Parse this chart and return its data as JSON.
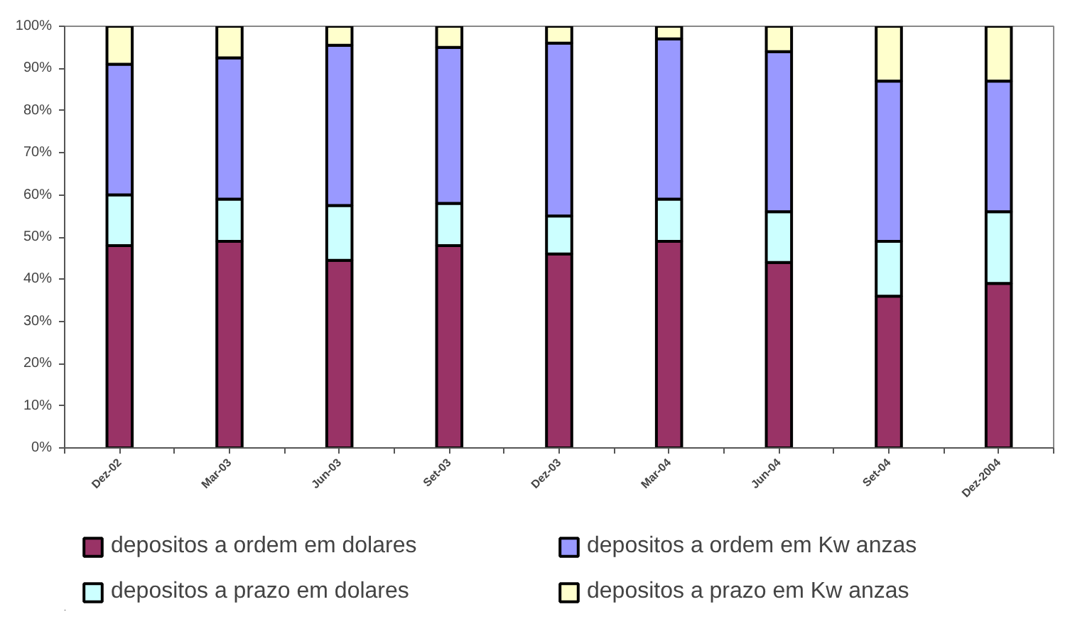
{
  "chart_data": {
    "type": "bar",
    "stacked": true,
    "categories": [
      "Dez-02",
      "Mar-03",
      "Jun-03",
      "Set-03",
      "Dez-03",
      "Mar-04",
      "Jun-04",
      "Set-04",
      "Dez-2004"
    ],
    "series": [
      {
        "name": "depositos a ordem em dolares",
        "color": "#993366",
        "values": [
          48,
          49,
          44.5,
          48,
          46,
          49,
          44,
          36,
          39
        ]
      },
      {
        "name": "depositos a prazo em dolares",
        "color": "#ccffff",
        "values": [
          12,
          10,
          13,
          10,
          9,
          10,
          12,
          13,
          17
        ]
      },
      {
        "name": "depositos a ordem em Kw anzas",
        "color": "#9999ff",
        "values": [
          31,
          33.5,
          38,
          37,
          41,
          38,
          38,
          38,
          31
        ]
      },
      {
        "name": "depositos a prazo em Kw anzas",
        "color": "#ffffcc",
        "values": [
          9,
          7.5,
          4.5,
          5,
          4,
          3,
          6,
          13,
          13
        ]
      }
    ],
    "ylim": [
      0,
      100
    ],
    "yticks": [
      {
        "value": 0,
        "label": "0%"
      },
      {
        "value": 10,
        "label": "10%"
      },
      {
        "value": 20,
        "label": "20%"
      },
      {
        "value": 30,
        "label": "30%"
      },
      {
        "value": 40,
        "label": "40%"
      },
      {
        "value": 50,
        "label": "50%"
      },
      {
        "value": 60,
        "label": "60%"
      },
      {
        "value": 70,
        "label": "70%"
      },
      {
        "value": 80,
        "label": "80%"
      },
      {
        "value": 90,
        "label": "90%"
      },
      {
        "value": 100,
        "label": "100%"
      }
    ],
    "grid": false,
    "legend": "bottom"
  }
}
